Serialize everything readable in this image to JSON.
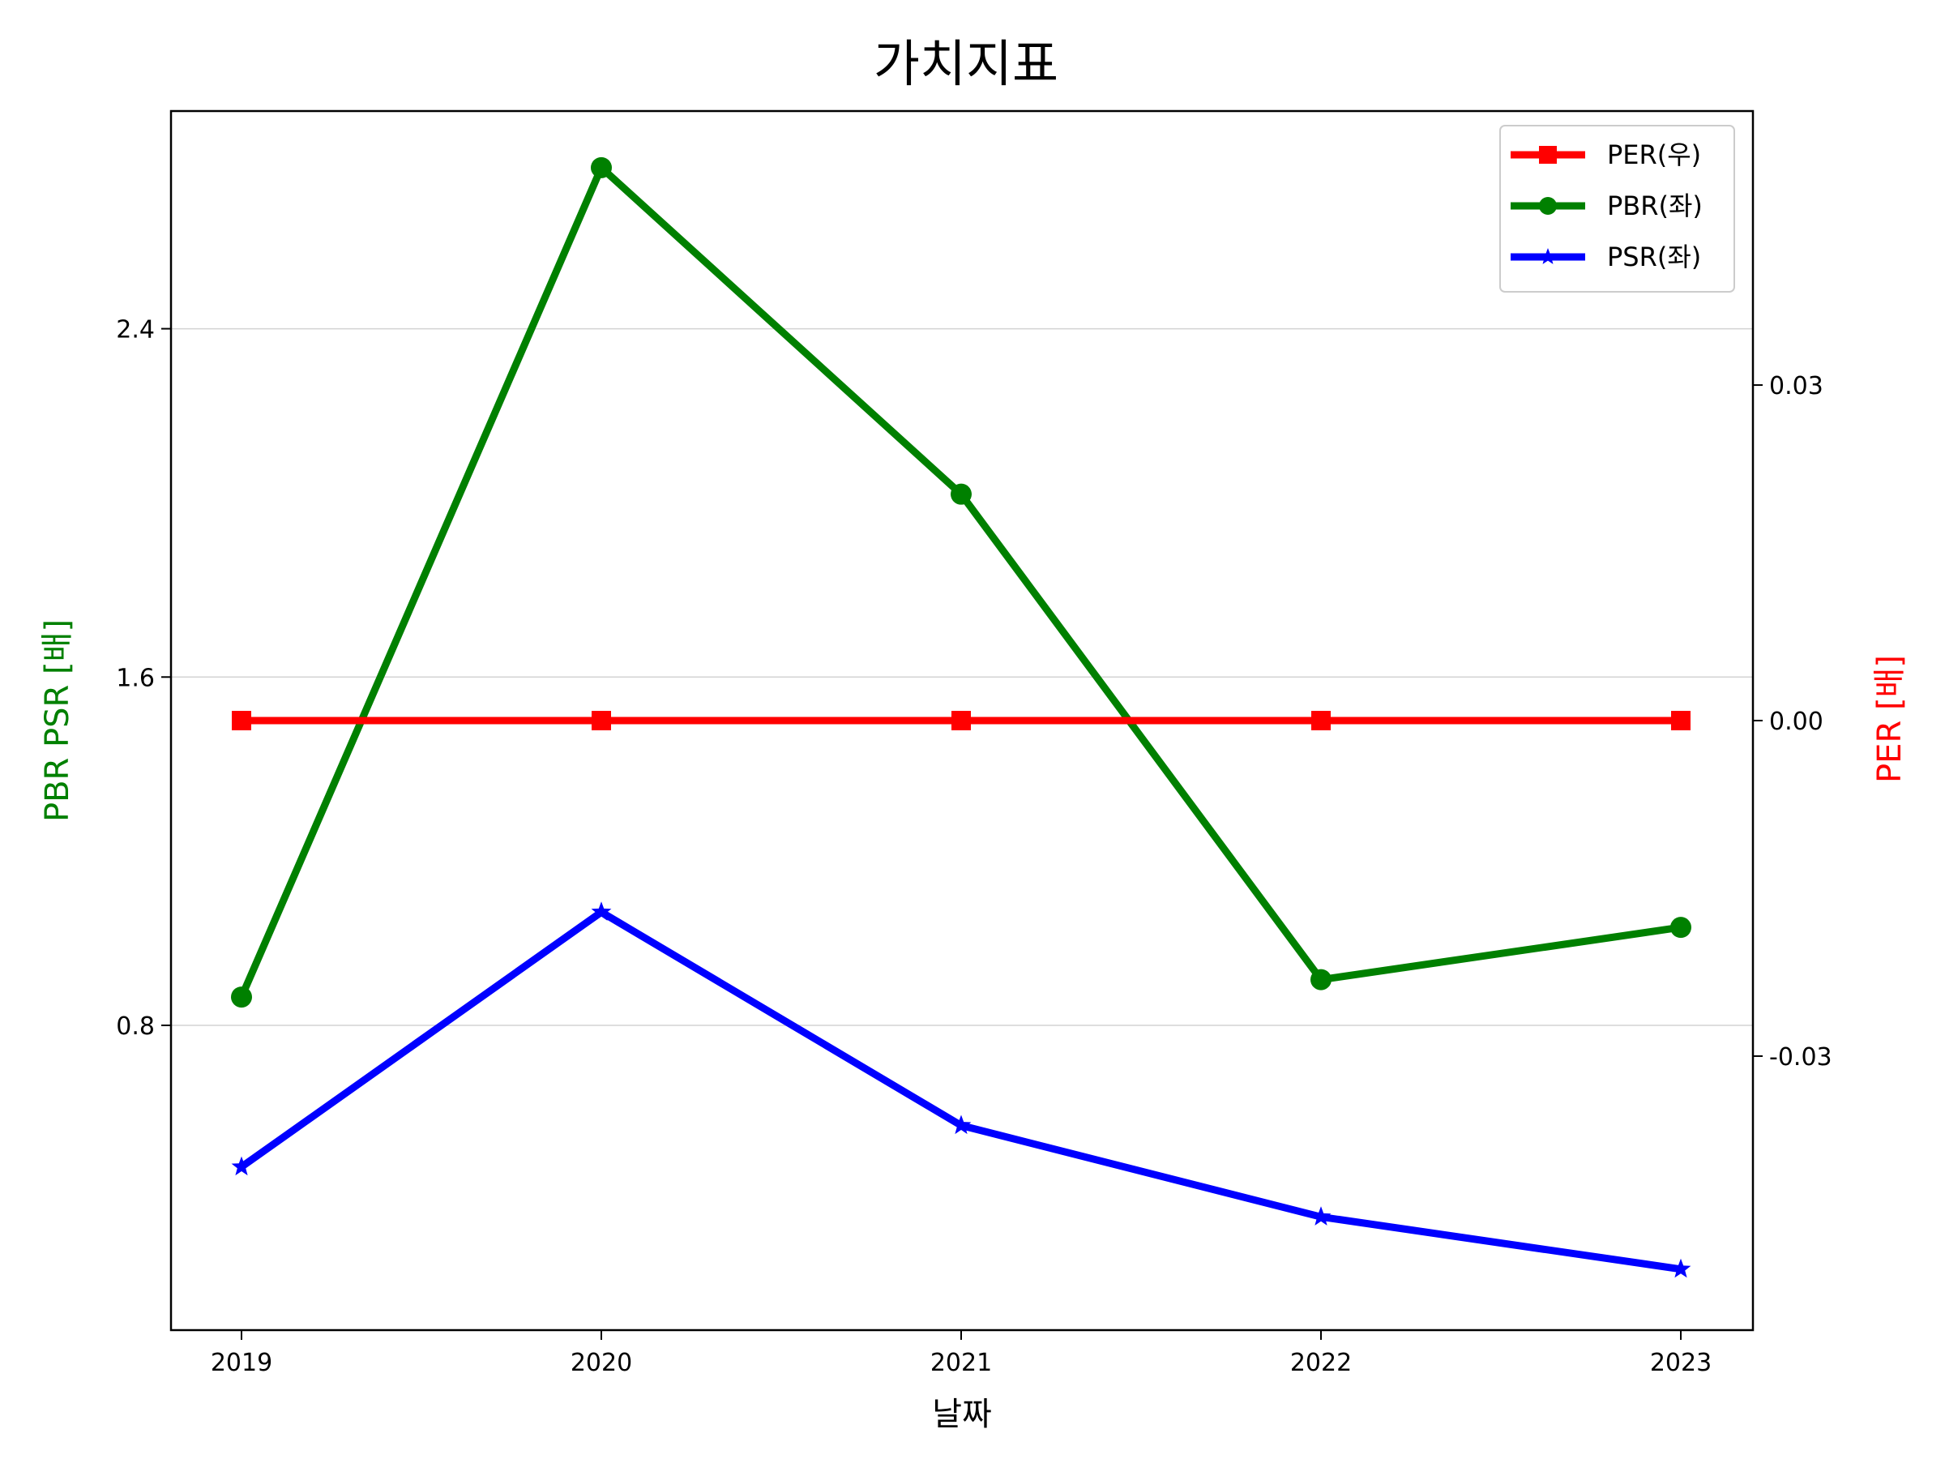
{
  "chart_data": {
    "type": "line",
    "title": "가치지표",
    "xlabel": "날짜",
    "ylabel_left": "PBR PSR [배]",
    "ylabel_right": "PER [배]",
    "x": [
      "2019",
      "2020",
      "2021",
      "2022",
      "2023"
    ],
    "ylim_left": [
      0.1,
      2.9
    ],
    "yticks_left": [
      "0.8",
      "1.6",
      "2.4"
    ],
    "ylim_right": [
      -0.0545,
      0.0545
    ],
    "yticks_right": [
      "-0.03",
      "0.00",
      "0.03"
    ],
    "grid": "horizontal (left axis)",
    "legend_position": "top-right",
    "series": [
      {
        "name": "PER(우)",
        "axis": "right",
        "color": "#ff0000",
        "marker": "square",
        "values": [
          0.0,
          0.0,
          0.0,
          0.0,
          0.0
        ]
      },
      {
        "name": "PBR(좌)",
        "axis": "left",
        "color": "#008000",
        "marker": "circle",
        "values": [
          0.865,
          2.77,
          2.02,
          0.905,
          1.025
        ]
      },
      {
        "name": "PSR(좌)",
        "axis": "left",
        "color": "#0000ff",
        "marker": "star",
        "values": [
          0.475,
          1.06,
          0.57,
          0.36,
          0.24
        ]
      }
    ]
  }
}
